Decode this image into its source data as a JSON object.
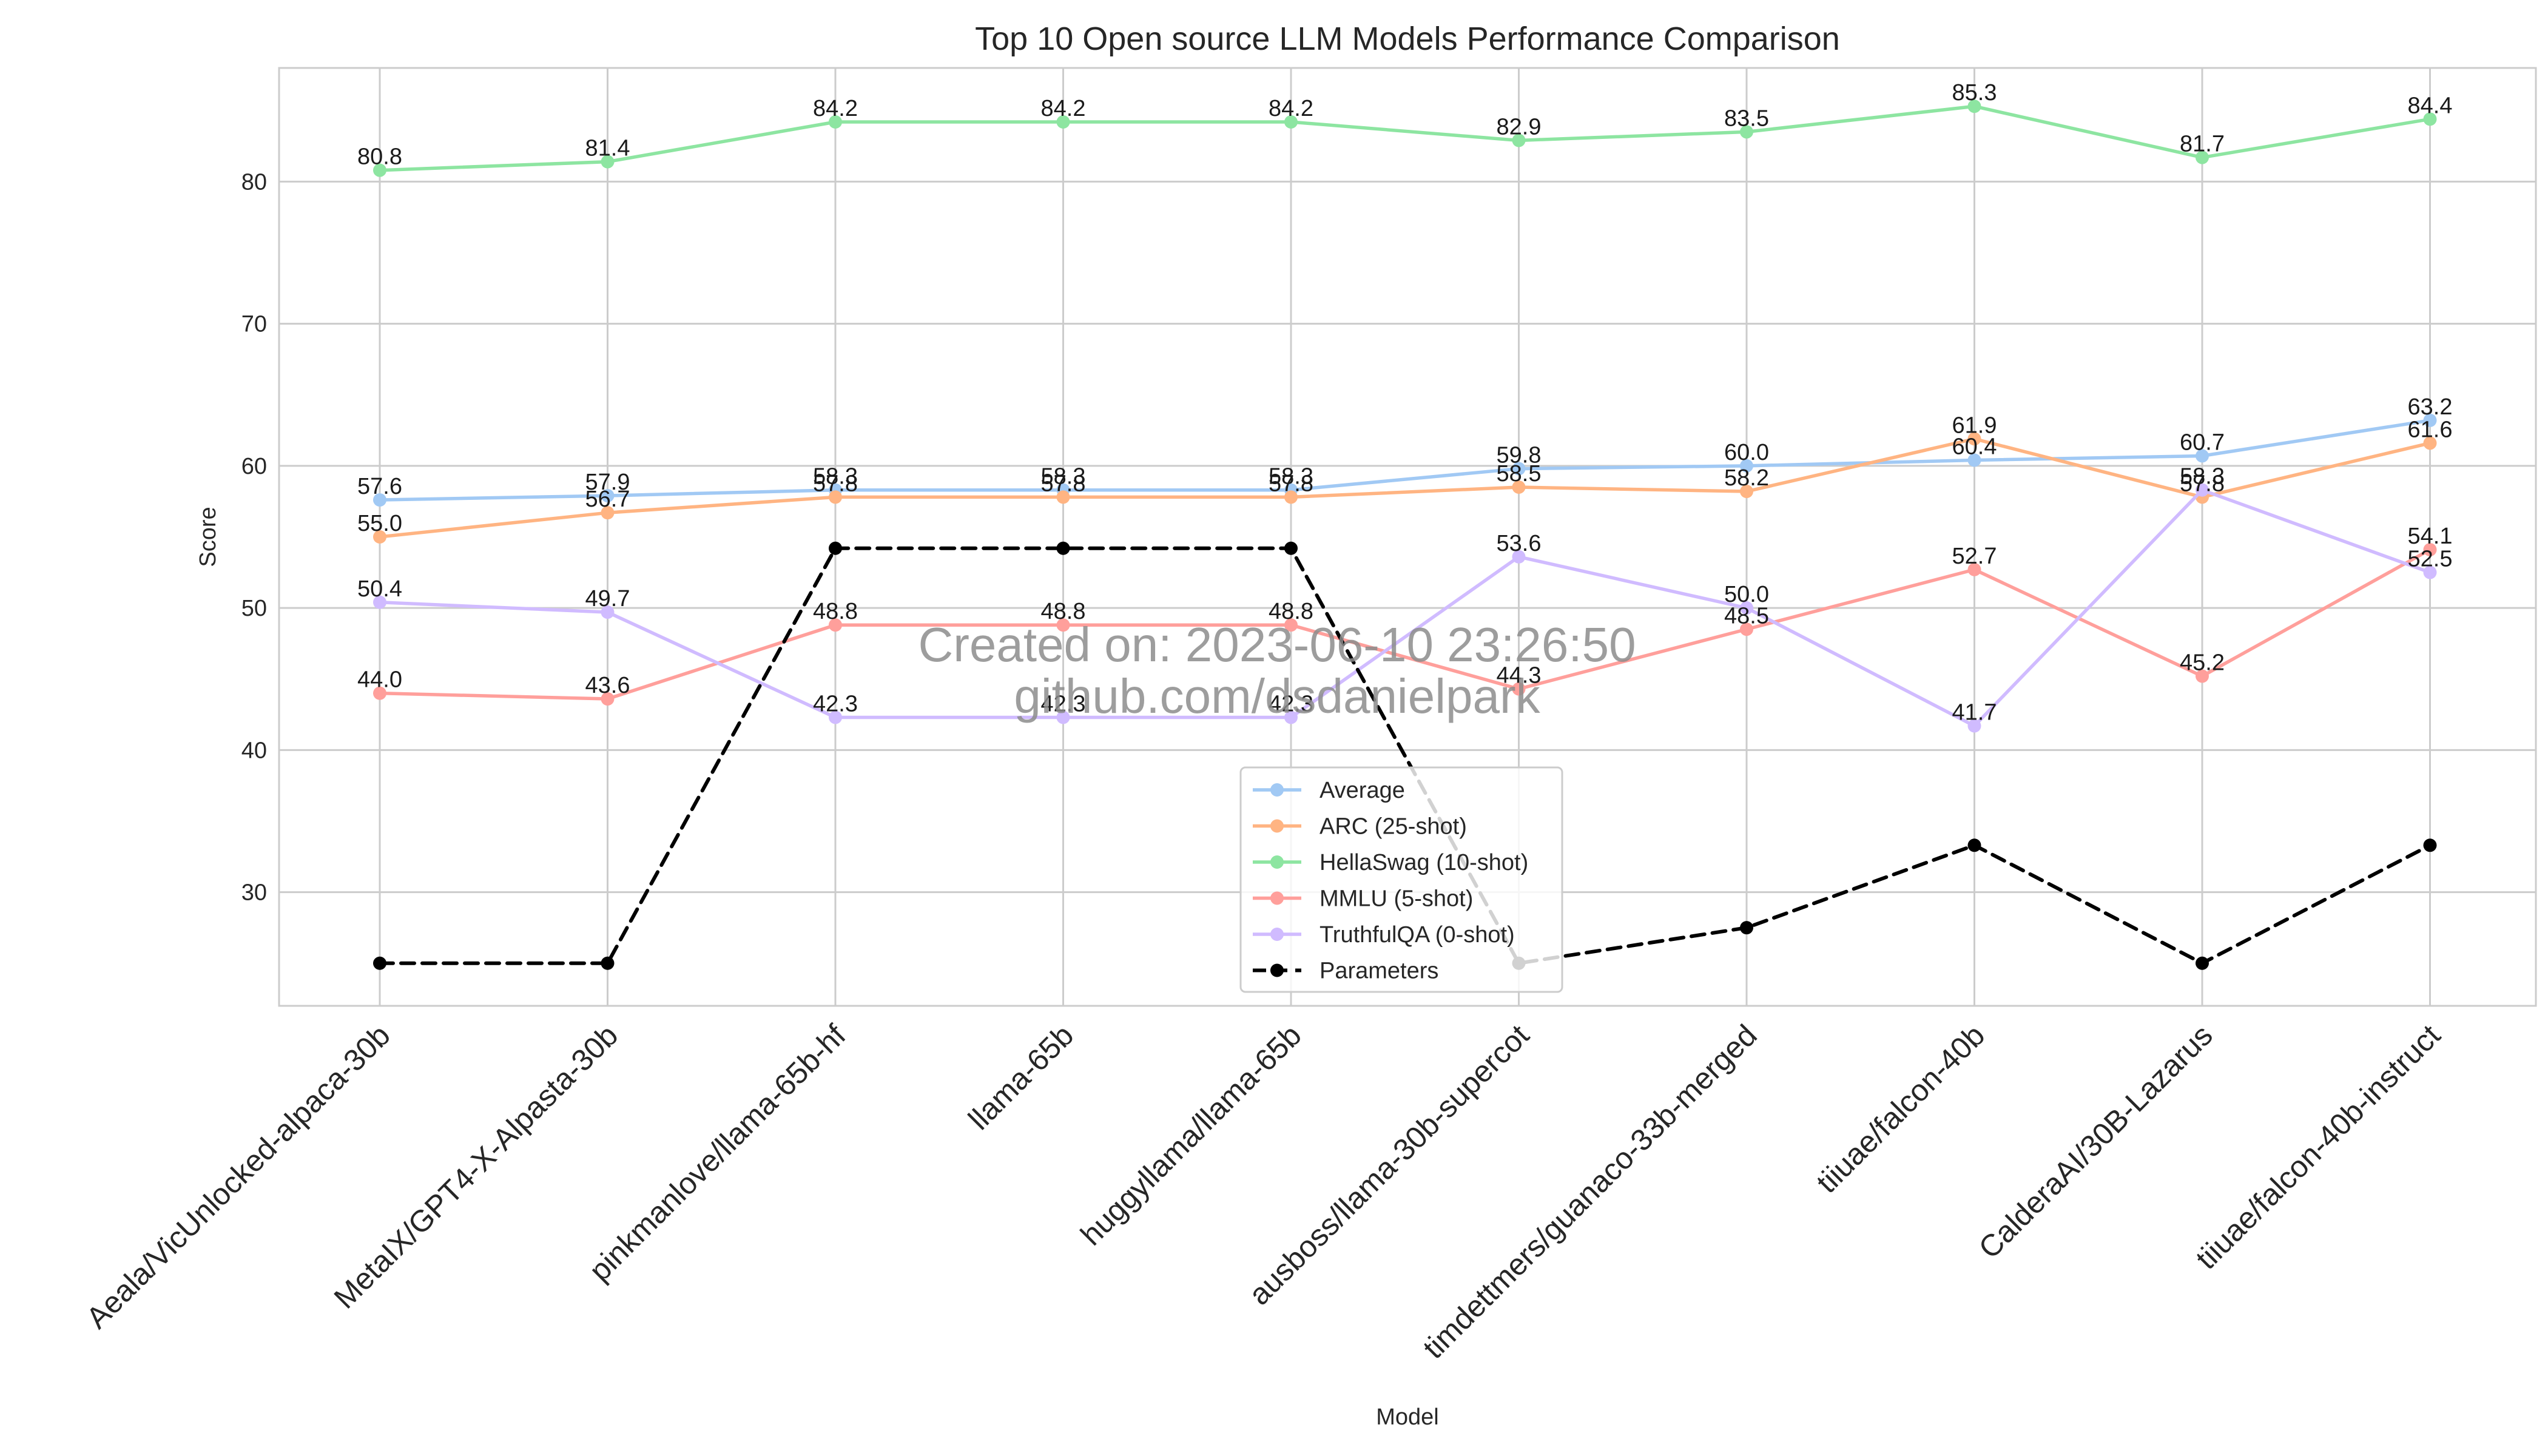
{
  "chart_data": {
    "type": "line",
    "title": "Top 10 Open source LLM Models Performance Comparison",
    "xlabel": "Model",
    "ylabel": "Score",
    "ylim": [
      22,
      88
    ],
    "yticks": [
      30,
      40,
      50,
      60,
      70,
      80
    ],
    "grid": true,
    "legend_position": "lower-center",
    "categories": [
      "Aeala/VicUnlocked-alpaca-30b",
      "MetaIX/GPT4-X-Alpasta-30b",
      "pinkmanlove/llama-65b-hf",
      "llama-65b",
      "huggyllama/llama-65b",
      "ausboss/llama-30b-supercot",
      "timdettmers/guanaco-33b-merged",
      "tiiuae/falcon-40b",
      "CalderaAI/30B-Lazarus",
      "tiiuae/falcon-40b-instruct"
    ],
    "series": [
      {
        "name": "Average",
        "color": "#a1c9f4",
        "style": "solid",
        "show_labels": true,
        "values": [
          57.6,
          57.9,
          58.3,
          58.3,
          58.3,
          59.8,
          60.0,
          60.4,
          60.7,
          63.2
        ],
        "labels": [
          "57.6",
          "57.9",
          "58.3",
          "58.3",
          "58.3",
          "59.8",
          "60.0",
          "60.4",
          "60.7",
          "63.2"
        ]
      },
      {
        "name": "ARC (25-shot)",
        "color": "#ffb482",
        "style": "solid",
        "show_labels": true,
        "values": [
          55.0,
          56.7,
          57.8,
          57.8,
          57.8,
          58.5,
          58.2,
          61.9,
          57.8,
          61.6
        ],
        "labels": [
          "55.0",
          "56.7",
          "57.8",
          "57.8",
          "57.8",
          "58.5",
          "58.2",
          "61.9",
          "57.8",
          "61.6"
        ]
      },
      {
        "name": "HellaSwag (10-shot)",
        "color": "#8de5a1",
        "style": "solid",
        "show_labels": true,
        "values": [
          80.8,
          81.4,
          84.2,
          84.2,
          84.2,
          82.9,
          83.5,
          85.3,
          81.7,
          84.4
        ],
        "labels": [
          "80.8",
          "81.4",
          "84.2",
          "84.2",
          "84.2",
          "82.9",
          "83.5",
          "85.3",
          "81.7",
          "84.4"
        ]
      },
      {
        "name": "MMLU (5-shot)",
        "color": "#ff9f9b",
        "style": "solid",
        "show_labels": true,
        "values": [
          44.0,
          43.6,
          48.8,
          48.8,
          48.8,
          44.3,
          48.5,
          52.7,
          45.2,
          54.1
        ],
        "labels": [
          "44.0",
          "43.6",
          "48.8",
          "48.8",
          "48.8",
          "44.3",
          "48.5",
          "52.7",
          "45.2",
          "54.1"
        ]
      },
      {
        "name": "TruthfulQA (0-shot)",
        "color": "#d0bbff",
        "style": "solid",
        "show_labels": true,
        "values": [
          50.4,
          49.7,
          42.3,
          42.3,
          42.3,
          53.6,
          50.0,
          41.7,
          58.3,
          52.5
        ],
        "labels": [
          "50.4",
          "49.7",
          "42.3",
          "42.3",
          "42.3",
          "53.6",
          "50.0",
          "41.7",
          "58.3",
          "52.5"
        ]
      },
      {
        "name": "Parameters",
        "color": "#000000",
        "style": "dashed",
        "show_labels": false,
        "values": [
          25.0,
          25.0,
          54.2,
          54.2,
          54.2,
          25.0,
          27.5,
          33.3,
          25.0,
          33.3
        ],
        "labels": []
      }
    ],
    "watermark": {
      "line1": "Created on: 2023-06-10 23:26:50",
      "line2": "github.com/dsdanielpark"
    }
  }
}
